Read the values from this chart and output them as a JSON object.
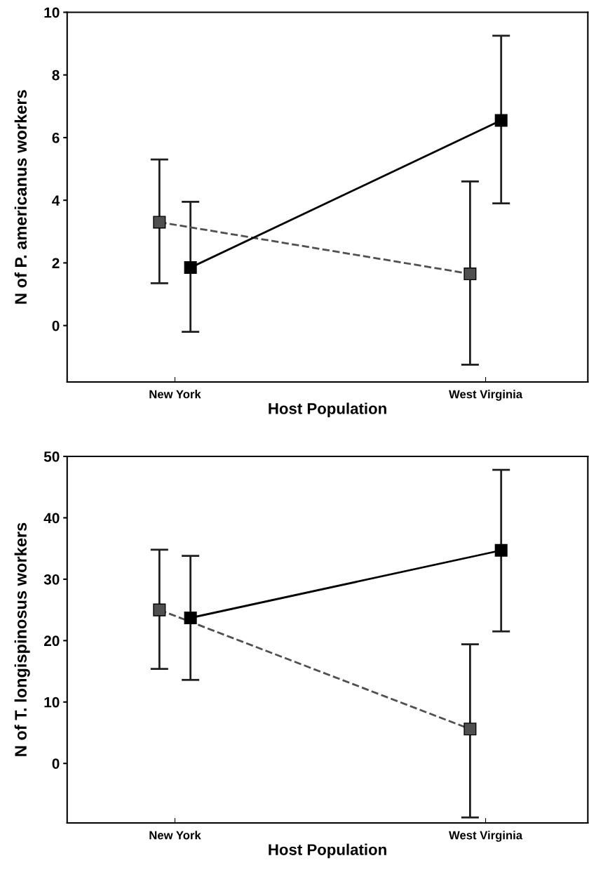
{
  "chart_data": [
    {
      "type": "line",
      "xlabel": "Host Population",
      "ylabel": "N of P. americanus workers",
      "categories": [
        "New York",
        "West Virginia"
      ],
      "ylim": [
        -1.8,
        10
      ],
      "yticks": [
        0,
        2,
        4,
        6,
        8,
        10
      ],
      "marker": "square",
      "series": [
        {
          "color": "#505050",
          "line_style": "dashed",
          "values": [
            3.3,
            1.65
          ],
          "errors": [
            [
              1.35,
              5.3
            ],
            [
              -1.25,
              4.6
            ]
          ]
        },
        {
          "color": "#000000",
          "line_style": "solid",
          "values": [
            1.85,
            6.55
          ],
          "errors": [
            [
              -0.2,
              3.95
            ],
            [
              3.9,
              9.25
            ]
          ]
        }
      ]
    },
    {
      "type": "line",
      "xlabel": "Host Population",
      "ylabel": "N of T. longispinosus workers",
      "categories": [
        "New York",
        "West Virginia"
      ],
      "ylim": [
        -9.7,
        50
      ],
      "yticks": [
        0,
        10,
        20,
        30,
        40,
        50
      ],
      "marker": "square",
      "series": [
        {
          "color": "#505050",
          "line_style": "dashed",
          "values": [
            25,
            5.6
          ],
          "errors": [
            [
              15.4,
              34.8
            ],
            [
              -8.8,
              19.4
            ]
          ]
        },
        {
          "color": "#000000",
          "line_style": "solid",
          "values": [
            23.7,
            34.7
          ],
          "errors": [
            [
              13.6,
              33.8
            ],
            [
              21.5,
              47.8
            ]
          ]
        }
      ]
    }
  ]
}
